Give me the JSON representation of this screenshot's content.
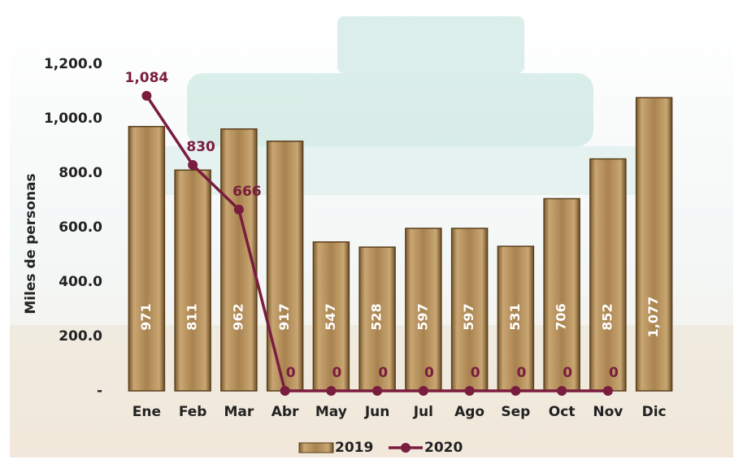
{
  "chart_data": {
    "type": "bar",
    "y_label": "Miles de personas",
    "categories": [
      "Ene",
      "Feb",
      "Mar",
      "Abr",
      "May",
      "Jun",
      "Jul",
      "Ago",
      "Sep",
      "Oct",
      "Nov",
      "Dic"
    ],
    "series": [
      {
        "name": "2019",
        "type": "bar",
        "color": "#a9834f",
        "values": [
          971,
          811,
          962,
          917,
          547,
          528,
          597,
          597,
          531,
          706,
          852,
          1077
        ],
        "value_labels": [
          "971",
          "811",
          "962",
          "917",
          "547",
          "528",
          "597",
          "597",
          "531",
          "706",
          "852",
          "1,077"
        ]
      },
      {
        "name": "2020",
        "type": "line",
        "color": "#7a1c3e",
        "values": [
          1084,
          830,
          666,
          0,
          0,
          0,
          0,
          0,
          0,
          0,
          0,
          null
        ],
        "value_labels": [
          "1,084",
          "830",
          "666",
          "0",
          "0",
          "0",
          "0",
          "0",
          "0",
          "0",
          "0",
          null
        ]
      }
    ],
    "ylim": [
      0,
      1200
    ],
    "yticks": [
      {
        "value": 0,
        "label": "-"
      },
      {
        "value": 200,
        "label": "200.0"
      },
      {
        "value": 400,
        "label": "400.0"
      },
      {
        "value": 600,
        "label": "600.0"
      },
      {
        "value": 800,
        "label": "800.0"
      },
      {
        "value": 1000,
        "label": "1,000.0"
      },
      {
        "value": 1200,
        "label": "1,200.0"
      }
    ],
    "grid": false
  }
}
